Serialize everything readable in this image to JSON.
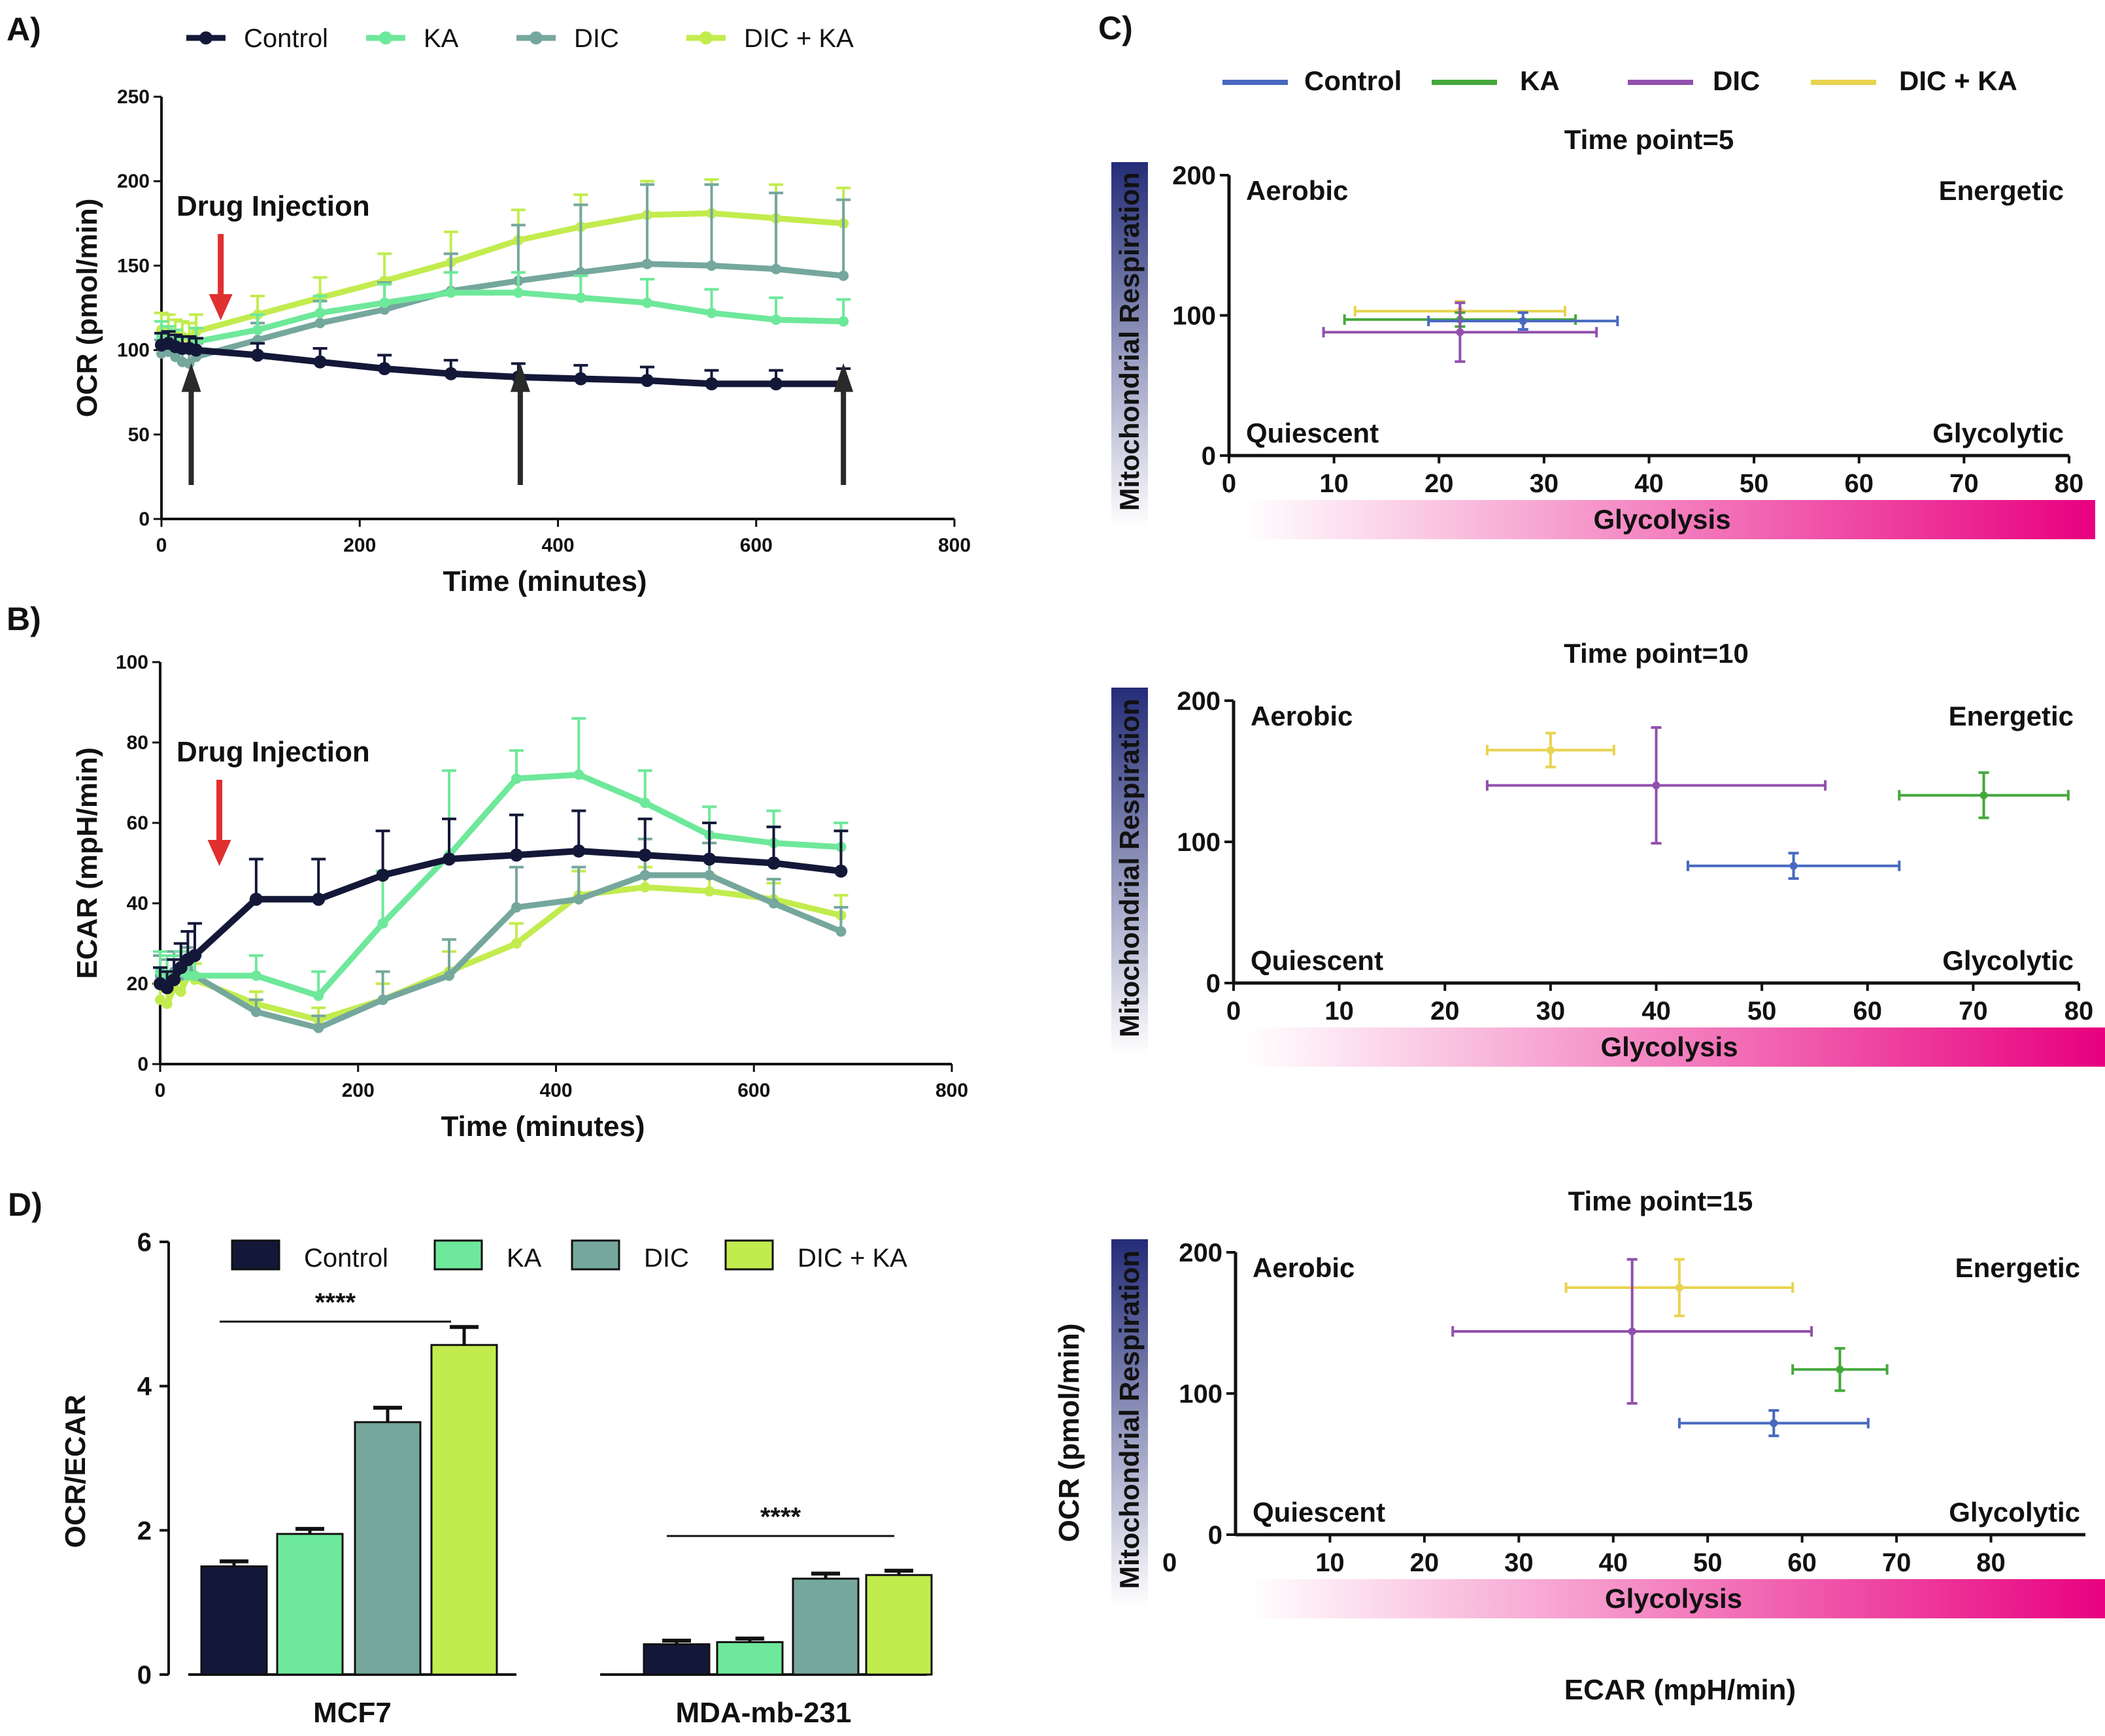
{
  "colors": {
    "Control": "#141838",
    "KA": "#6ee89a",
    "DIC": "#75a79d",
    "DIC + KA": "#c2ec4e",
    "C_Control": "#4869c0",
    "C_KA": "#45a83c",
    "C_DIC": "#9250ad",
    "C_DIC + KA": "#e9d350",
    "aerobic": "#2f3590",
    "energetic": "#dd2031",
    "quiescent": "#3ab4d0",
    "glycolytic": "#c01892",
    "arrow_red": "#e03030",
    "pink": "#e8007f",
    "navy": "#242c78"
  },
  "chart_data": [
    {
      "id": "A",
      "panel_label": "A)",
      "type": "line",
      "xlabel": "Time (minutes)",
      "ylabel": "OCR (pmol/min)",
      "xlim": [
        0,
        800
      ],
      "ylim": [
        0,
        250
      ],
      "xticks": [
        "0",
        "200",
        "400",
        "600",
        "800"
      ],
      "yticks": [
        "0",
        "50",
        "100",
        "150",
        "200",
        "250"
      ],
      "annotation": "Drug Injection",
      "legend": [
        "Control",
        "KA",
        "DIC",
        "DIC + KA"
      ],
      "injection_arrow_x": 40,
      "black_arrow_x": [
        30,
        362,
        688
      ],
      "x": [
        0,
        7,
        14,
        21,
        28,
        35,
        97,
        160,
        225,
        292,
        360,
        423,
        490,
        555,
        620,
        688
      ],
      "series": [
        {
          "name": "Control",
          "values": [
            103,
            104,
            102,
            101,
            101,
            100,
            97,
            93,
            89,
            86,
            84,
            83,
            82,
            80,
            80,
            80
          ],
          "err": [
            7,
            7,
            7,
            7,
            7,
            7,
            7,
            8,
            8,
            8,
            8,
            8,
            8,
            8,
            8,
            9
          ]
        },
        {
          "name": "KA",
          "values": [
            108,
            106,
            104,
            100,
            101,
            105,
            112,
            122,
            128,
            134,
            134,
            131,
            128,
            122,
            118,
            117
          ],
          "err": [
            9,
            8,
            8,
            7,
            7,
            8,
            9,
            10,
            11,
            12,
            12,
            13,
            14,
            14,
            13,
            13
          ]
        },
        {
          "name": "DIC",
          "values": [
            98,
            99,
            96,
            93,
            92,
            96,
            106,
            116,
            124,
            135,
            141,
            146,
            151,
            150,
            148,
            144
          ],
          "err": [
            8,
            8,
            7,
            7,
            7,
            8,
            10,
            13,
            16,
            22,
            33,
            40,
            47,
            48,
            45,
            45
          ]
        },
        {
          "name": "DIC + KA",
          "values": [
            112,
            111,
            109,
            108,
            107,
            111,
            121,
            131,
            141,
            152,
            165,
            173,
            180,
            181,
            178,
            175
          ],
          "err": [
            10,
            10,
            9,
            9,
            9,
            10,
            11,
            12,
            16,
            18,
            18,
            19,
            20,
            20,
            20,
            21
          ]
        }
      ]
    },
    {
      "id": "B",
      "panel_label": "B)",
      "type": "line",
      "xlabel": "Time (minutes)",
      "ylabel": "ECAR (mpH/min)",
      "xlim": [
        0,
        800
      ],
      "ylim": [
        0,
        100
      ],
      "xticks": [
        "0",
        "200",
        "400",
        "600",
        "800"
      ],
      "yticks": [
        "0",
        "20",
        "40",
        "60",
        "80",
        "100"
      ],
      "annotation": "Drug Injection",
      "injection_arrow_x": 40,
      "x": [
        0,
        7,
        14,
        21,
        28,
        35,
        97,
        160,
        225,
        292,
        360,
        423,
        490,
        555,
        620,
        688
      ],
      "series": [
        {
          "name": "Control",
          "values": [
            20,
            19,
            21,
            24,
            26,
            27,
            41,
            41,
            47,
            51,
            52,
            53,
            52,
            51,
            50,
            48
          ],
          "err": [
            4,
            4,
            5,
            6,
            7,
            8,
            10,
            10,
            11,
            10,
            10,
            10,
            9,
            9,
            9,
            10
          ]
        },
        {
          "name": "KA",
          "values": [
            23,
            22,
            22,
            23,
            22,
            22,
            22,
            17,
            35,
            52,
            71,
            72,
            65,
            57,
            55,
            54
          ],
          "err": [
            5,
            5,
            5,
            5,
            5,
            5,
            5,
            6,
            13,
            21,
            7,
            14,
            8,
            7,
            8,
            6
          ]
        },
        {
          "name": "DIC",
          "values": [
            22,
            21,
            23,
            22,
            24,
            22,
            13,
            9,
            16,
            22,
            39,
            41,
            47,
            47,
            40,
            33
          ],
          "err": [
            5,
            5,
            5,
            5,
            5,
            5,
            3,
            3,
            7,
            9,
            10,
            8,
            9,
            8,
            6,
            6
          ]
        },
        {
          "name": "DIC + KA",
          "values": [
            16,
            15,
            19,
            18,
            22,
            21,
            15,
            11,
            16,
            23,
            30,
            42,
            44,
            43,
            41,
            37
          ],
          "err": [
            4,
            4,
            4,
            4,
            4,
            4,
            3,
            3,
            4,
            5,
            5,
            6,
            5,
            4,
            4,
            5
          ]
        }
      ]
    },
    {
      "id": "C5",
      "panel_label": "C)",
      "type": "scatter",
      "title": "Time point=5",
      "xlabel": "Glycolysis",
      "ylabel": "Mitochondrial Respiration",
      "xlim": [
        0,
        80
      ],
      "ylim": [
        0,
        200
      ],
      "xticks": [
        "0",
        "10",
        "20",
        "30",
        "40",
        "50",
        "60",
        "70",
        "80"
      ],
      "yticks": [
        "0",
        "100",
        "200"
      ],
      "quadrants": {
        "aerobic": "Aerobic",
        "energetic": "Energetic",
        "quiescent": "Quiescent",
        "glycolytic": "Glycolytic"
      },
      "legend": [
        "Control",
        "KA",
        "DIC",
        "DIC + KA"
      ],
      "points": [
        {
          "name": "DIC + KA",
          "x": 22,
          "y": 103,
          "xerr": 10,
          "yerr": 7
        },
        {
          "name": "KA",
          "x": 22,
          "y": 97,
          "xerr": 11,
          "yerr": 5
        },
        {
          "name": "Control",
          "x": 28,
          "y": 96,
          "xerr": 9,
          "yerr": 6
        },
        {
          "name": "DIC",
          "x": 22,
          "y": 88,
          "xerr": 13,
          "yerr": 21
        }
      ]
    },
    {
      "id": "C10",
      "type": "scatter",
      "title": "Time point=10",
      "xlabel": "Glycolysis",
      "ylabel": "Mitochondrial Respiration",
      "xlim": [
        0,
        80
      ],
      "ylim": [
        0,
        200
      ],
      "xticks": [
        "0",
        "10",
        "20",
        "30",
        "40",
        "50",
        "60",
        "70",
        "80"
      ],
      "yticks": [
        "0",
        "100",
        "200"
      ],
      "quadrants": {
        "aerobic": "Aerobic",
        "energetic": "Energetic",
        "quiescent": "Quiescent",
        "glycolytic": "Glycolytic"
      },
      "points": [
        {
          "name": "DIC + KA",
          "x": 30,
          "y": 165,
          "xerr": 6,
          "yerr": 12
        },
        {
          "name": "DIC",
          "x": 40,
          "y": 140,
          "xerr": 16,
          "yerr": 41
        },
        {
          "name": "KA",
          "x": 71,
          "y": 133,
          "xerr": 8,
          "yerr": 16
        },
        {
          "name": "Control",
          "x": 53,
          "y": 83,
          "xerr": 10,
          "yerr": 9
        }
      ]
    },
    {
      "id": "C15",
      "type": "scatter",
      "title": "Time point=15",
      "xlabel": "Glycolysis",
      "ylabel": "Mitochondrial Respiration",
      "outer_ylabel": "OCR (pmol/min)",
      "outer_xlabel": "ECAR (mpH/min)",
      "outer_zero": "0",
      "xlim": [
        0,
        90
      ],
      "ylim": [
        0,
        200
      ],
      "xticks": [
        "10",
        "20",
        "30",
        "40",
        "50",
        "60",
        "70",
        "80"
      ],
      "yticks": [
        "0",
        "100",
        "200"
      ],
      "quadrants": {
        "aerobic": "Aerobic",
        "energetic": "Energetic",
        "quiescent": "Quiescent",
        "glycolytic": "Glycolytic"
      },
      "points": [
        {
          "name": "DIC + KA",
          "x": 47,
          "y": 175,
          "xerr": 12,
          "yerr": 20
        },
        {
          "name": "DIC",
          "x": 42,
          "y": 144,
          "xerr": 19,
          "yerr": 51
        },
        {
          "name": "KA",
          "x": 64,
          "y": 117,
          "xerr": 5,
          "yerr": 15
        },
        {
          "name": "Control",
          "x": 57,
          "y": 79,
          "xerr": 10,
          "yerr": 9
        }
      ]
    },
    {
      "id": "D",
      "panel_label": "D)",
      "type": "bar",
      "ylabel": "OCR/ECAR",
      "ylim": [
        0,
        6
      ],
      "yticks": [
        "0",
        "2",
        "4",
        "6"
      ],
      "legend": [
        "Control",
        "KA",
        "DIC",
        "DIC + KA"
      ],
      "groups": [
        {
          "name": "MCF7",
          "values": [
            1.5,
            1.95,
            3.5,
            4.57
          ],
          "err": [
            0.07,
            0.07,
            0.2,
            0.25
          ],
          "significance": "****"
        },
        {
          "name": "MDA-mb-231",
          "values": [
            0.42,
            0.45,
            1.33,
            1.38
          ],
          "err": [
            0.05,
            0.05,
            0.07,
            0.06
          ],
          "significance": "****"
        }
      ]
    }
  ]
}
